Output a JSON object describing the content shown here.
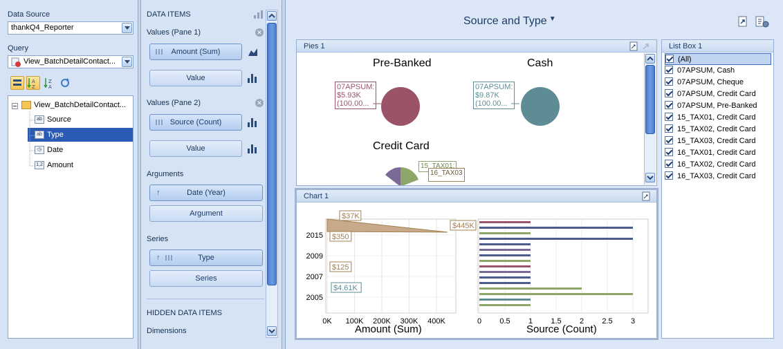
{
  "left": {
    "data_source_label": "Data Source",
    "data_source_value": "thankQ4_Reporter",
    "query_label": "Query",
    "query_value": "View_BatchDetailContact...",
    "tree": {
      "root": "View_BatchDetailContact...",
      "fields": [
        {
          "name": "Source",
          "type_icon": "ab"
        },
        {
          "name": "Type",
          "type_icon": "ab"
        },
        {
          "name": "Date",
          "type_icon": "clock"
        },
        {
          "name": "Amount",
          "type_icon": "1,2"
        }
      ],
      "selected_index": 1
    }
  },
  "data_items": {
    "title": "DATA ITEMS",
    "values_pane1": "Values (Pane 1)",
    "amount_sum": "Amount (Sum)",
    "value1": "Value",
    "values_pane2": "Values (Pane 2)",
    "source_count": "Source (Count)",
    "value2": "Value",
    "arguments": "Arguments",
    "date_year": "Date (Year)",
    "argument": "Argument",
    "series": "Series",
    "type": "Type",
    "series_btn": "Series",
    "hidden": "HIDDEN DATA ITEMS",
    "dimensions": "Dimensions"
  },
  "dashboard": {
    "title": "Source and Type",
    "pies_caption": "Pies 1",
    "pies": [
      {
        "title": "Pre-Banked",
        "label": [
          "07APSUM:",
          "$5.93K",
          "(100.00..."
        ],
        "color": "#9b5367"
      },
      {
        "title": "Cash",
        "label": [
          "07APSUM:",
          "$9.87K",
          "(100.00..."
        ],
        "color": "#5e8c95"
      },
      {
        "title": "Credit Card",
        "label": [
          "15_TAX01:",
          "16_TAX03"
        ],
        "color": "#8da66a"
      }
    ],
    "chart_caption": "Chart 1",
    "listbox_caption": "List Box 1",
    "listbox_items": [
      "(All)",
      "07APSUM, Cash",
      "07APSUM, Cheque",
      "07APSUM, Credit Card",
      "07APSUM, Pre-Banked",
      "15_TAX01, Credit Card",
      "15_TAX02, Credit Card",
      "15_TAX03, Credit Card",
      "16_TAX01, Credit Card",
      "16_TAX02, Credit Card",
      "16_TAX03, Credit Card"
    ]
  },
  "chart_data": [
    {
      "type": "area",
      "xlabel": "Amount (Sum)",
      "x_ticks": [
        "0K",
        "100K",
        "200K",
        "300K",
        "400K"
      ],
      "y_ticks": [
        "2005",
        "2007",
        "2009",
        "2015"
      ],
      "labels": [
        {
          "text": "$37K",
          "color": "#a08050"
        },
        {
          "text": "$445K",
          "color": "#a08050"
        },
        {
          "text": "$350",
          "color": "#a08050"
        },
        {
          "text": "$125",
          "color": "#a08050"
        },
        {
          "text": "$4.61K",
          "color": "#5e8c95"
        }
      ]
    },
    {
      "type": "bar",
      "xlabel": "Source (Count)",
      "x_ticks": [
        "0",
        "0.5",
        "1",
        "1.5",
        "2",
        "2.5",
        "3"
      ],
      "xlim": [
        0,
        3
      ],
      "bars": [
        {
          "value": 1,
          "color": "#9b5367"
        },
        {
          "value": 3,
          "color": "#4a5d8a"
        },
        {
          "value": 1,
          "color": "#8da66a"
        },
        {
          "value": 3,
          "color": "#4a5d8a"
        },
        {
          "value": 1,
          "color": "#4a5d8a"
        },
        {
          "value": 1,
          "color": "#7a6a96"
        },
        {
          "value": 1,
          "color": "#4a5d8a"
        },
        {
          "value": 1,
          "color": "#8da66a"
        },
        {
          "value": 1,
          "color": "#9b5367"
        },
        {
          "value": 1,
          "color": "#7a6a96"
        },
        {
          "value": 1,
          "color": "#4a5d8a"
        },
        {
          "value": 1,
          "color": "#4a5d8a"
        },
        {
          "value": 2,
          "color": "#8da66a"
        },
        {
          "value": 3,
          "color": "#8da66a"
        },
        {
          "value": 1,
          "color": "#5e8c95"
        },
        {
          "value": 1,
          "color": "#8da66a"
        }
      ]
    }
  ]
}
